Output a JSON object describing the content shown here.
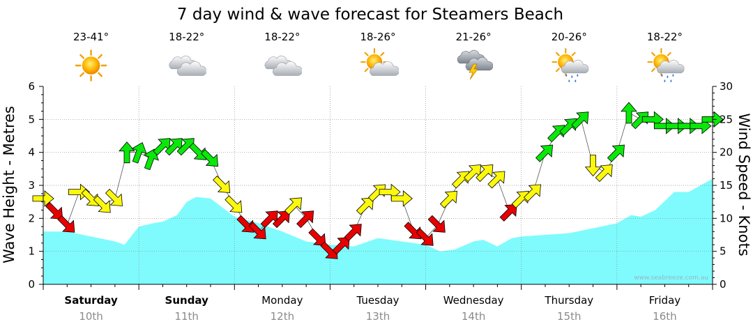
{
  "chart_data": {
    "type": "area",
    "title": "7 day wind & wave forecast for Steamers Beach",
    "ylabel": "Wave Height - Metres",
    "y2label": "Wind Speed - Knots",
    "ylim": [
      0,
      6
    ],
    "y2lim": [
      0,
      30
    ],
    "yticks": [
      "0",
      "1",
      "2",
      "3",
      "4",
      "5",
      "6"
    ],
    "y2ticks": [
      "0",
      "5",
      "10",
      "15",
      "20",
      "25",
      "30"
    ],
    "grid": true,
    "credit": "www.seabreeze.com.au",
    "days": [
      {
        "name": "Saturday",
        "date": "10th",
        "bold": true,
        "temp": "23-41°",
        "icon": "sunny-icon"
      },
      {
        "name": "Sunday",
        "date": "11th",
        "bold": true,
        "temp": "18-22°",
        "icon": "cloudy-icon"
      },
      {
        "name": "Monday",
        "date": "12th",
        "bold": false,
        "temp": "18-22°",
        "icon": "cloudy-icon"
      },
      {
        "name": "Tuesday",
        "date": "13th",
        "bold": false,
        "temp": "18-26°",
        "icon": "partly-cloudy-icon"
      },
      {
        "name": "Wednesday",
        "date": "14th",
        "bold": false,
        "temp": "21-26°",
        "icon": "thunderstorm-icon"
      },
      {
        "name": "Thursday",
        "date": "15th",
        "bold": false,
        "temp": "20-26°",
        "icon": "sun-showers-icon"
      },
      {
        "name": "Friday",
        "date": "16th",
        "bold": false,
        "temp": "18-22°",
        "icon": "sun-showers-icon"
      }
    ],
    "wave_height": {
      "name": "Wave height",
      "color": "#7ffbfd",
      "x_days": [
        0,
        0.25,
        0.5,
        0.75,
        0.85,
        1.0,
        1.15,
        1.25,
        1.4,
        1.5,
        1.6,
        1.75,
        2.0,
        2.25,
        2.5,
        2.75,
        3.0,
        3.25,
        3.5,
        3.75,
        4.0,
        4.15,
        4.3,
        4.5,
        4.6,
        4.75,
        4.9,
        5.0,
        5.25,
        5.5,
        5.75,
        6.0,
        6.15,
        6.25,
        6.4,
        6.6,
        6.75,
        7.0
      ],
      "values": [
        1.6,
        1.6,
        1.45,
        1.3,
        1.2,
        1.75,
        1.85,
        1.9,
        2.1,
        2.5,
        2.65,
        2.6,
        2.05,
        1.85,
        1.6,
        1.3,
        1.2,
        1.15,
        1.4,
        1.3,
        1.2,
        1.0,
        1.05,
        1.3,
        1.35,
        1.15,
        1.4,
        1.45,
        1.5,
        1.55,
        1.7,
        1.85,
        2.1,
        2.05,
        2.25,
        2.8,
        2.8,
        3.2
      ]
    },
    "wind": {
      "unit": "knots",
      "color_scale": [
        {
          "range": "under 12",
          "color": "#e80000"
        },
        {
          "range": "12-18",
          "color": "#fbf80d"
        },
        {
          "range": "over 18",
          "color": "#0ae80a"
        }
      ],
      "x_days": [
        0.0,
        0.125,
        0.25,
        0.375,
        0.5,
        0.625,
        0.75,
        0.875,
        1.0,
        1.125,
        1.25,
        1.375,
        1.5,
        1.625,
        1.75,
        1.875,
        2.0,
        2.125,
        2.25,
        2.375,
        2.5,
        2.625,
        2.75,
        2.875,
        3.0,
        3.125,
        3.25,
        3.375,
        3.5,
        3.625,
        3.75,
        3.875,
        4.0,
        4.125,
        4.25,
        4.375,
        4.5,
        4.625,
        4.75,
        4.875,
        5.0,
        5.125,
        5.25,
        5.375,
        5.5,
        5.625,
        5.75,
        5.875,
        6.0,
        6.125,
        6.25,
        6.375,
        6.5,
        6.625,
        6.75,
        6.875,
        7.0
      ],
      "speed_knots": [
        13,
        11,
        9,
        14,
        13,
        12,
        13,
        20,
        20,
        19,
        21,
        21,
        21,
        20,
        19,
        15,
        12,
        9,
        8,
        10,
        10,
        12,
        10,
        7,
        5,
        6,
        8,
        12,
        14,
        14,
        13,
        8,
        7,
        9,
        13,
        16,
        17,
        17,
        16,
        11,
        13,
        14,
        20,
        23,
        24,
        25,
        18,
        17,
        20,
        26,
        25,
        25,
        24,
        24,
        24,
        24,
        25
      ],
      "direction_deg": [
        90,
        135,
        135,
        90,
        135,
        135,
        135,
        0,
        20,
        20,
        45,
        45,
        45,
        135,
        135,
        135,
        135,
        135,
        135,
        45,
        45,
        45,
        45,
        135,
        135,
        45,
        45,
        45,
        45,
        90,
        90,
        135,
        135,
        135,
        45,
        45,
        45,
        45,
        45,
        45,
        45,
        45,
        45,
        45,
        45,
        45,
        180,
        45,
        45,
        0,
        45,
        90,
        90,
        90,
        90,
        90,
        90
      ]
    }
  }
}
